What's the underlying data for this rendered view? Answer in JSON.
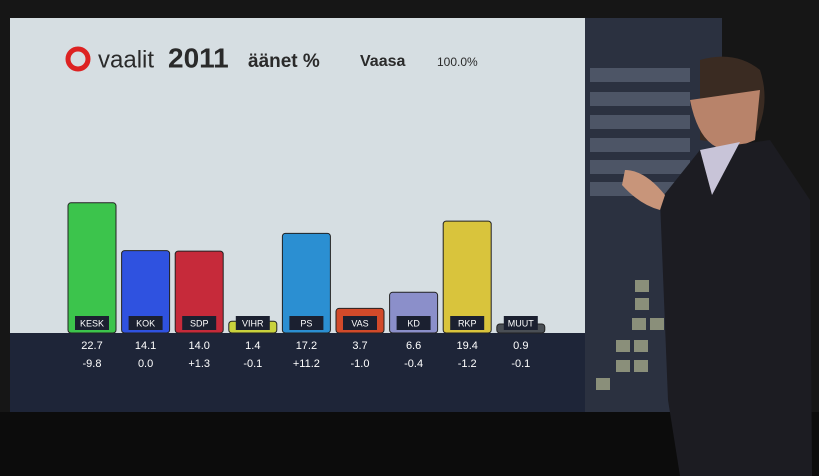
{
  "chart_data": {
    "type": "bar",
    "brand": "vaalit",
    "year": "2011",
    "title": "äänet %",
    "region": "Vaasa",
    "counted": "100.0%",
    "categories": [
      "KESK",
      "KOK",
      "SDP",
      "VIHR",
      "PS",
      "VAS",
      "KD",
      "RKP",
      "MUUT"
    ],
    "values": [
      22.7,
      14.1,
      14.0,
      1.4,
      17.2,
      3.7,
      6.6,
      19.4,
      0.9
    ],
    "value_labels": [
      "22.7",
      "14.1",
      "14.0",
      "1.4",
      "17.2",
      "3.7",
      "6.6",
      "19.4",
      "0.9"
    ],
    "changes": [
      -9.8,
      0.0,
      1.3,
      -0.1,
      11.2,
      -1.0,
      -0.4,
      -1.2,
      -0.1
    ],
    "change_labels": [
      "-9.8",
      "0.0",
      "+1.3",
      "-0.1",
      "+11.2",
      "-1.0",
      "-0.4",
      "-1.2",
      "-0.1"
    ],
    "colors": [
      "#3cc44c",
      "#2f52e0",
      "#c62a3a",
      "#c9d23c",
      "#2b8fd2",
      "#d24a2a",
      "#8b8fca",
      "#d9c43c",
      "#4a4f55"
    ],
    "ylim": [
      0,
      25
    ]
  }
}
